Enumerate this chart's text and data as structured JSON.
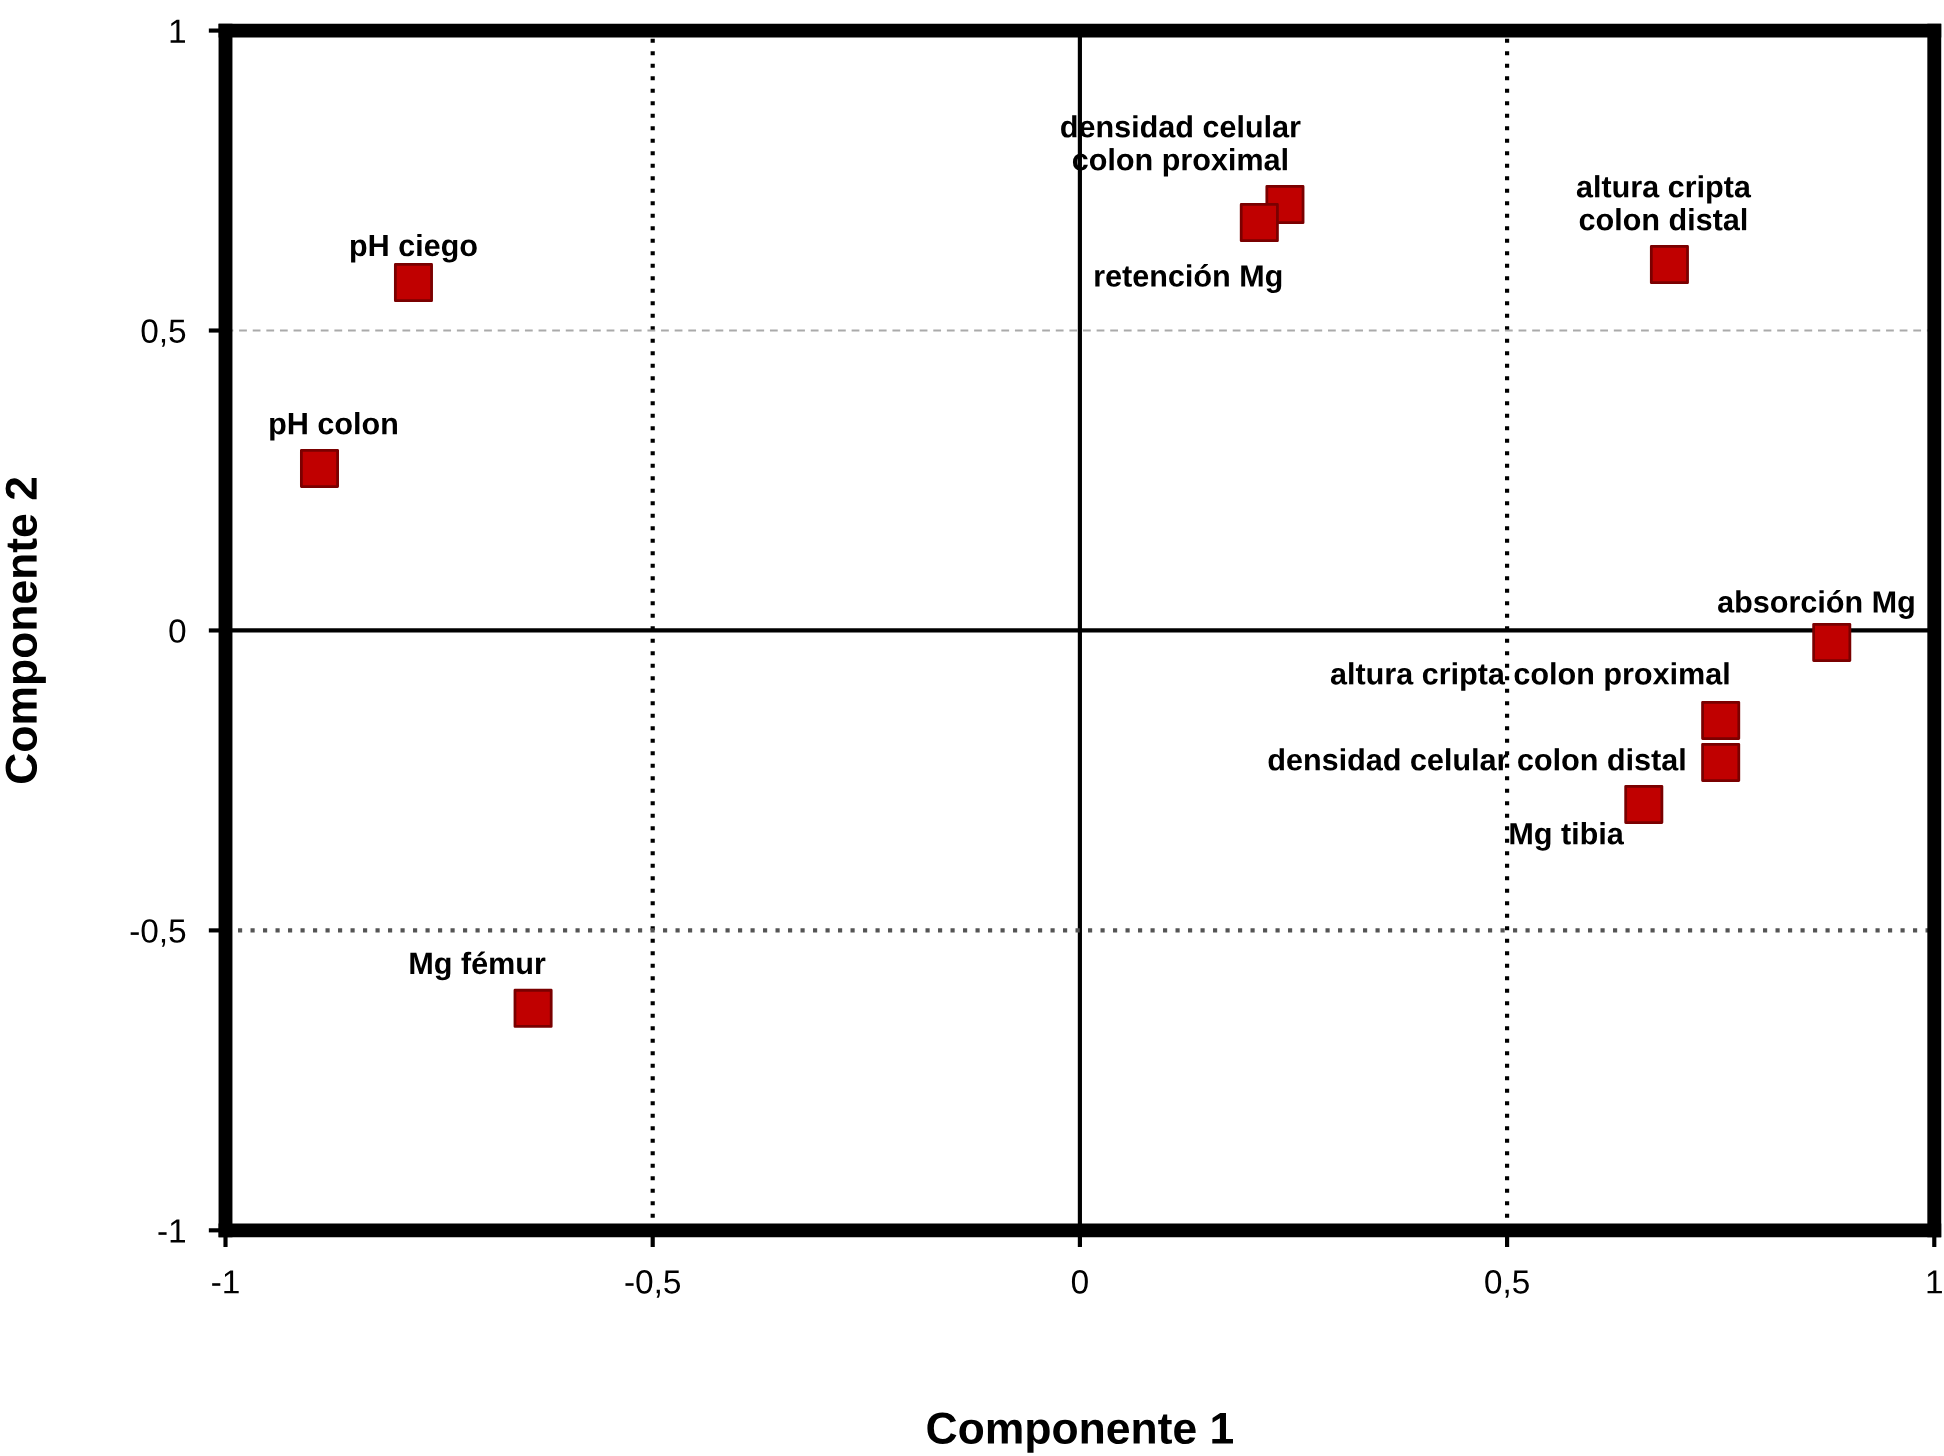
{
  "chart_data": {
    "type": "scatter",
    "xlabel": "Componente 1",
    "ylabel": "Componente 2",
    "x": [
      -0.78,
      -0.89,
      -0.64,
      0.24,
      0.21,
      0.69,
      0.88,
      0.75,
      0.75,
      0.66
    ],
    "series": [
      {
        "color": "#c00000",
        "values": [
          0.58,
          0.27,
          -0.63,
          0.71,
          0.68,
          0.61,
          -0.02,
          -0.15,
          -0.22,
          -0.29
        ]
      }
    ],
    "marker": "square",
    "xlim": [
      -1,
      1
    ],
    "ylim": [
      -1,
      1
    ],
    "xticks": [
      {
        "value": -1,
        "label": "-1"
      },
      {
        "value": -0.5,
        "label": "-0,5"
      },
      {
        "value": 0,
        "label": "0"
      },
      {
        "value": 0.5,
        "label": "0,5"
      },
      {
        "value": 1,
        "label": "1"
      }
    ],
    "yticks": [
      {
        "value": -1,
        "label": "-1"
      },
      {
        "value": -0.5,
        "label": "-0,5"
      },
      {
        "value": 0,
        "label": "0"
      },
      {
        "value": 0.5,
        "label": "0,5"
      },
      {
        "value": 1,
        "label": "1"
      }
    ],
    "ref_lines": [
      {
        "axis": "x",
        "value": 0,
        "color": "#000000",
        "line_style": "solid"
      },
      {
        "axis": "y",
        "value": 0,
        "color": "#000000",
        "line_style": "solid"
      },
      {
        "axis": "x",
        "value": -0.5,
        "color": "#000000",
        "line_style": "dotted"
      },
      {
        "axis": "x",
        "value": 0.5,
        "color": "#000000",
        "line_style": "dotted"
      },
      {
        "axis": "y",
        "value": 0.5,
        "color": "#aaaaaa",
        "line_style": "dashed"
      },
      {
        "axis": "y",
        "value": -0.5,
        "color": "#555555",
        "line_style": "dotted"
      }
    ],
    "annotations": [
      {
        "text": "pH ciego",
        "x": -0.78,
        "y": 0.58
      },
      {
        "text": "pH colon",
        "x": -0.89,
        "y": 0.27
      },
      {
        "text": "Mg fémur",
        "x": -0.64,
        "y": -0.63
      },
      {
        "text": "densidad celular\ncolon proximal",
        "x": 0.24,
        "y": 0.71
      },
      {
        "text": "retención Mg",
        "x": 0.21,
        "y": 0.68
      },
      {
        "text": "altura cripta\ncolon distal",
        "x": 0.69,
        "y": 0.61
      },
      {
        "text": "absorción Mg",
        "x": 0.88,
        "y": -0.02
      },
      {
        "text": "altura cripta colon proximal",
        "x": 0.75,
        "y": -0.15
      },
      {
        "text": "densidad celular colon distal",
        "x": 0.75,
        "y": -0.22
      },
      {
        "text": "Mg tibia",
        "x": 0.66,
        "y": -0.29
      }
    ],
    "grid": false,
    "legend": false
  }
}
